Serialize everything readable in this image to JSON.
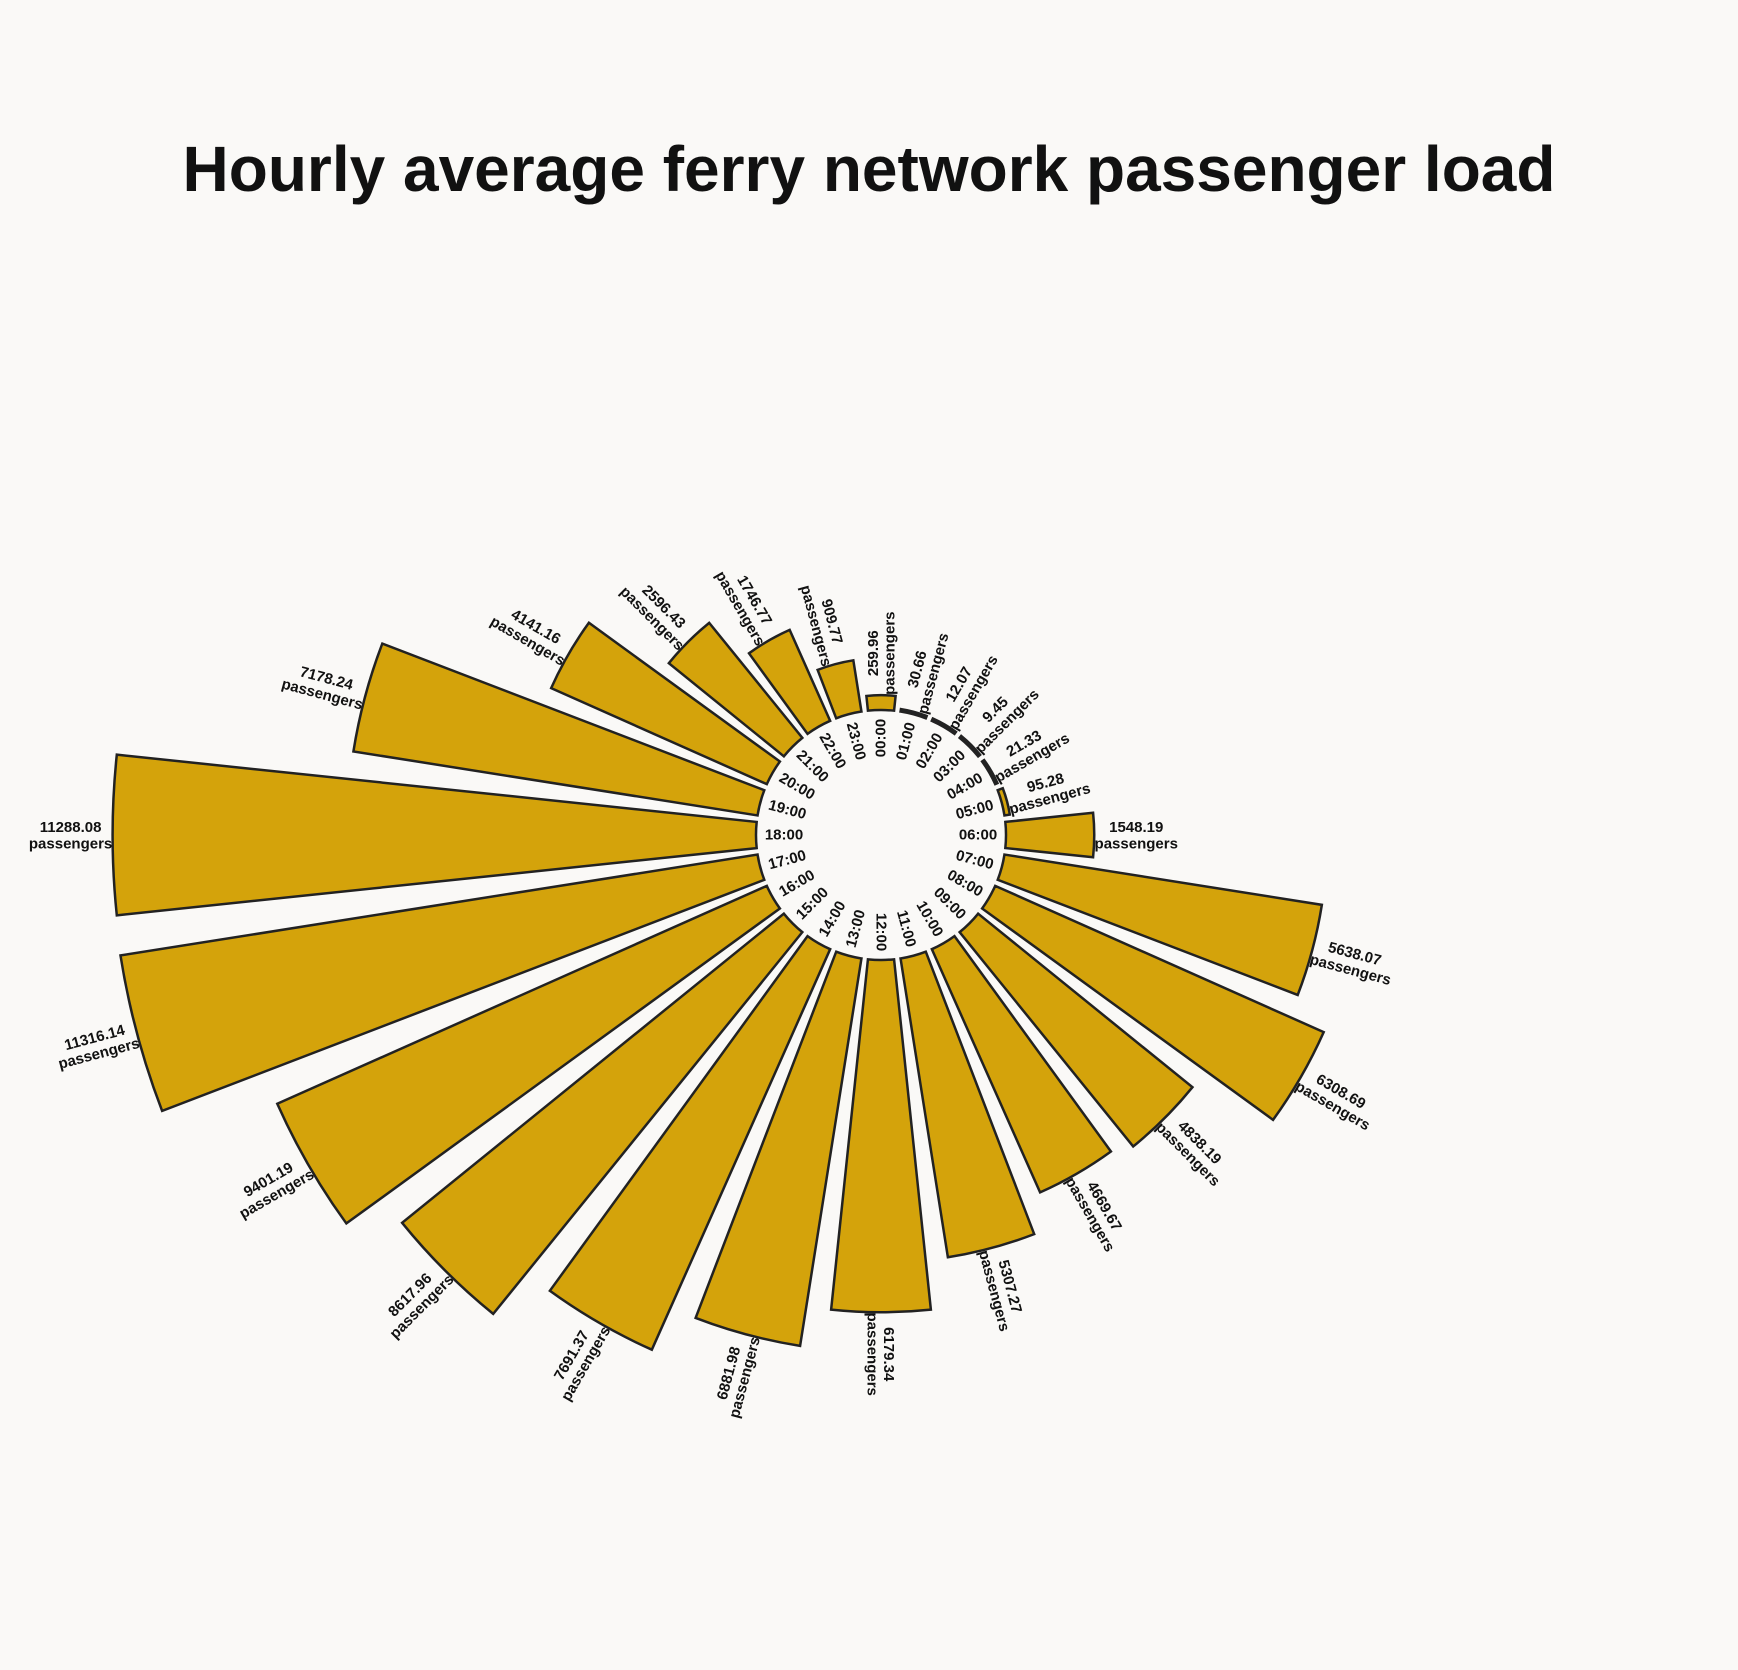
{
  "title": "Hourly average ferry network passenger load",
  "colors": {
    "bar": "#d4a30b",
    "background": "#faf9f7",
    "outline": "#222222"
  },
  "chart_data": {
    "type": "bar",
    "polar": true,
    "title": "Hourly average ferry network passenger load",
    "categories": [
      "00:00",
      "01:00",
      "02:00",
      "03:00",
      "04:00",
      "05:00",
      "06:00",
      "07:00",
      "08:00",
      "09:00",
      "10:00",
      "11:00",
      "12:00",
      "13:00",
      "14:00",
      "15:00",
      "16:00",
      "17:00",
      "18:00",
      "19:00",
      "20:00",
      "21:00",
      "22:00",
      "23:00"
    ],
    "values": [
      259.96,
      30.66,
      12.07,
      9.45,
      21.33,
      95.28,
      1548.19,
      5638.07,
      6308.69,
      4838.19,
      4669.67,
      5307.27,
      6179.34,
      6881.98,
      7691.37,
      8617.96,
      9401.19,
      11316.14,
      11288.08,
      7178.24,
      4141.16,
      2596.43,
      1746.77,
      909.77
    ],
    "value_labels": [
      "259.96 passengers",
      "30.66 passengers",
      "12.07 passengers",
      "9.45 passengers",
      "21.33 passengers",
      "95.28 passengers",
      "1548.19 passengers",
      "5638.07 passengers",
      "6308.69 passengers",
      "4838.19 passengers",
      "4669.67 passengers",
      "5307.27 passengers",
      "6179.34 passengers",
      "6881.98 passengers",
      "7691.37 passengers",
      "8617.96 passengers",
      "9401.19 passengers",
      "11316.14 passengers",
      "11288.08 passengers",
      "7178.24 passengers",
      "4141.16 passengers",
      "2596.43 passengers",
      "1746.77 passengers",
      "909.77 passengers"
    ],
    "unit": "passengers",
    "direction": "clockwise",
    "start": "top",
    "grid": false,
    "legend": "none"
  }
}
